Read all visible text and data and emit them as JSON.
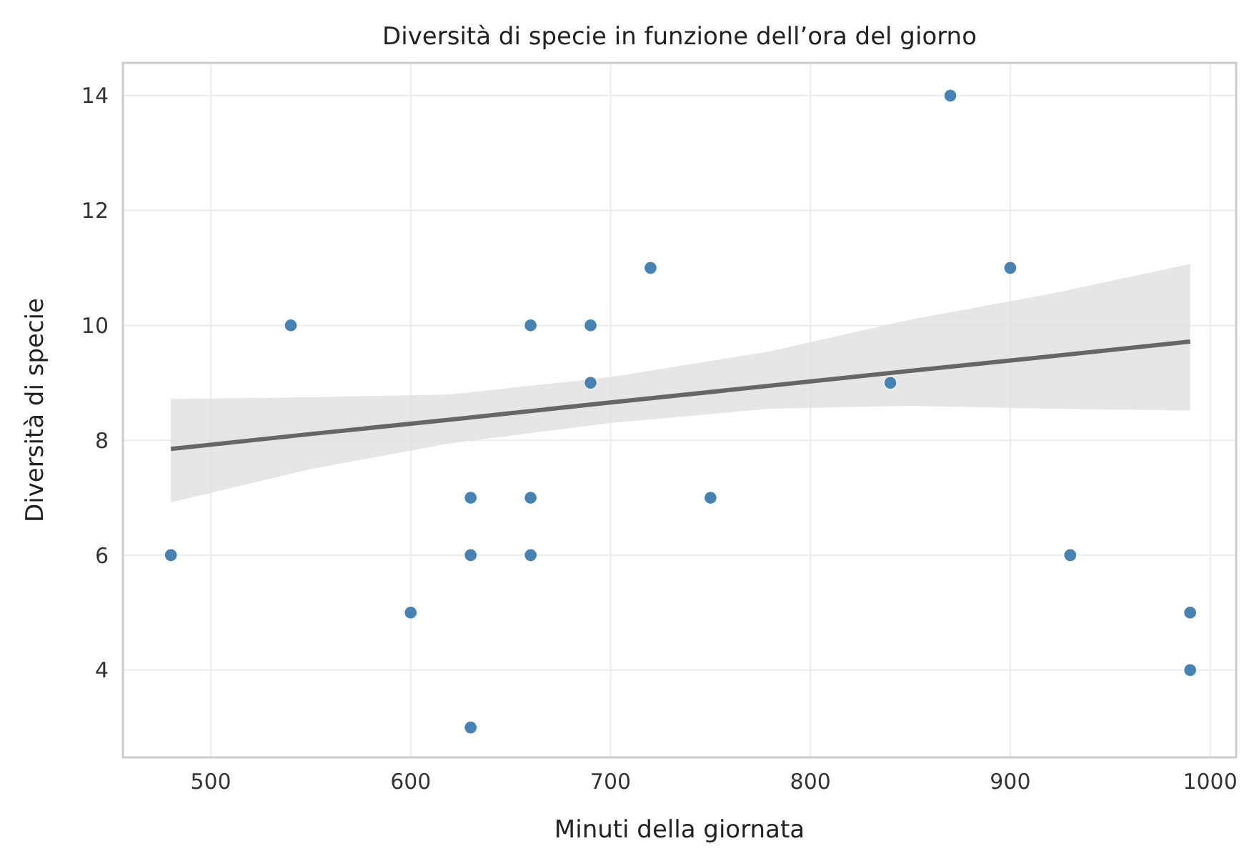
{
  "chart_data": {
    "type": "scatter",
    "title": "Diversità di specie in funzione dell’ora del giorno",
    "xlabel": "Minuti della giornata",
    "ylabel": "Diversità di specie",
    "xlim": [
      456,
      1013
    ],
    "ylim": [
      2.48,
      14.57
    ],
    "xticks": [
      500,
      600,
      700,
      800,
      900,
      1000
    ],
    "yticks": [
      4,
      6,
      8,
      10,
      12,
      14
    ],
    "grid": true,
    "series": [
      {
        "type": "line",
        "color": "#666666",
        "marker": "none",
        "x": [
          480,
          550,
          620,
          700,
          780,
          850,
          920,
          990
        ],
        "values": [
          7.85,
          8.11,
          8.36,
          8.66,
          8.95,
          9.21,
          9.46,
          9.72
        ],
        "lower": [
          6.92,
          7.5,
          7.95,
          8.3,
          8.55,
          8.6,
          8.55,
          8.52
        ],
        "upper": [
          8.72,
          8.75,
          8.8,
          9.1,
          9.55,
          10.1,
          10.55,
          11.07
        ]
      },
      {
        "color": "#4682b4",
        "marker": "circle",
        "x": [
          480,
          540,
          600,
          630,
          630,
          630,
          660,
          660,
          660,
          690,
          690,
          720,
          750,
          840,
          870,
          900,
          930,
          990,
          990
        ],
        "values": [
          6,
          10,
          5,
          7,
          6,
          3,
          10,
          7,
          6,
          10,
          9,
          11,
          7,
          9,
          14,
          11,
          6,
          5,
          4
        ]
      }
    ]
  }
}
